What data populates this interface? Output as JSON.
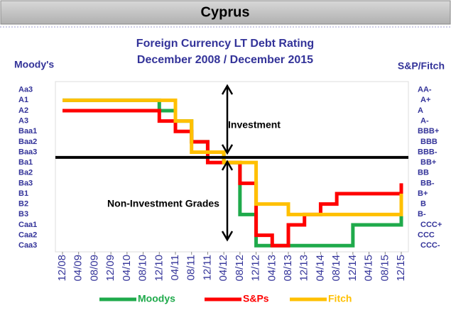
{
  "chart_data": {
    "type": "line",
    "header": "Cyprus",
    "title": "Foreign Currency LT Debt Rating",
    "subtitle": "December 2008 / December 2015",
    "y_label": "Moody's",
    "y2_label": "S&P/Fitch",
    "annotations": [
      "Investment",
      "Non-Investment Grades"
    ],
    "categories": [
      "12/08",
      "04/09",
      "08/09",
      "12/09",
      "04/10",
      "08/10",
      "12/10",
      "04/11",
      "08/11",
      "12/11",
      "04/12",
      "08/12",
      "12/12",
      "04/13",
      "08/13",
      "12/13",
      "04/14",
      "08/14",
      "12/14",
      "04/15",
      "08/15",
      "12/15"
    ],
    "series": [
      {
        "name": "Moodys",
        "color": "#1faa4b",
        "values": [
          2,
          2,
          2,
          2,
          2,
          2,
          3,
          4,
          6,
          7,
          8,
          13,
          16,
          16,
          16,
          16,
          16,
          16,
          14,
          14,
          14,
          11
        ]
      },
      {
        "name": "S&Ps",
        "color": "#ff0000",
        "axis": "y2",
        "values": [
          3,
          3,
          3,
          3,
          3,
          3,
          4,
          5,
          6,
          8,
          8,
          10,
          15,
          16,
          14,
          13,
          12,
          11,
          11,
          11,
          11,
          10
        ]
      },
      {
        "name": "Fitch",
        "color": "#ffc000",
        "axis": "y2",
        "values": [
          2,
          2,
          2,
          2,
          2,
          2,
          2,
          4,
          7,
          7,
          8,
          8,
          12,
          12,
          13,
          13,
          13,
          13,
          13,
          13,
          13,
          11
        ]
      }
    ],
    "reference_line": 7.5,
    "ylim": [
      16.6,
      0.2
    ],
    "yticks": [
      {
        "value": 1,
        "label": "Aa3"
      },
      {
        "value": 2,
        "label": "A1"
      },
      {
        "value": 3,
        "label": "A2"
      },
      {
        "value": 4,
        "label": "A3"
      },
      {
        "value": 5,
        "label": "Baa1"
      },
      {
        "value": 6,
        "label": "Baa2"
      },
      {
        "value": 7,
        "label": "Baa3"
      },
      {
        "value": 8,
        "label": "Ba1"
      },
      {
        "value": 9,
        "label": "Ba2"
      },
      {
        "value": 10,
        "label": "Ba3"
      },
      {
        "value": 11,
        "label": "B1"
      },
      {
        "value": 12,
        "label": "B2"
      },
      {
        "value": 13,
        "label": "B3"
      },
      {
        "value": 14,
        "label": "Caa1"
      },
      {
        "value": 15,
        "label": "Caa2"
      },
      {
        "value": 16,
        "label": "Caa3"
      }
    ],
    "y2lim": [
      16.6,
      0.2
    ],
    "y2ticks": [
      {
        "value": 1,
        "label": "AA-"
      },
      {
        "value": 2,
        "label": "A+"
      },
      {
        "value": 3,
        "label": "A"
      },
      {
        "value": 4,
        "label": "A-"
      },
      {
        "value": 5,
        "label": "BBB+"
      },
      {
        "value": 6,
        "label": "BBB"
      },
      {
        "value": 7,
        "label": "BBB-"
      },
      {
        "value": 8,
        "label": "BB+"
      },
      {
        "value": 9,
        "label": "BB"
      },
      {
        "value": 10,
        "label": "BB-"
      },
      {
        "value": 11,
        "label": "B+"
      },
      {
        "value": 12,
        "label": "B"
      },
      {
        "value": 13,
        "label": "B-"
      },
      {
        "value": 14,
        "label": "CCC+"
      },
      {
        "value": 15,
        "label": "CCC"
      },
      {
        "value": 16,
        "label": "CCC-"
      }
    ],
    "legend": "bottom"
  }
}
